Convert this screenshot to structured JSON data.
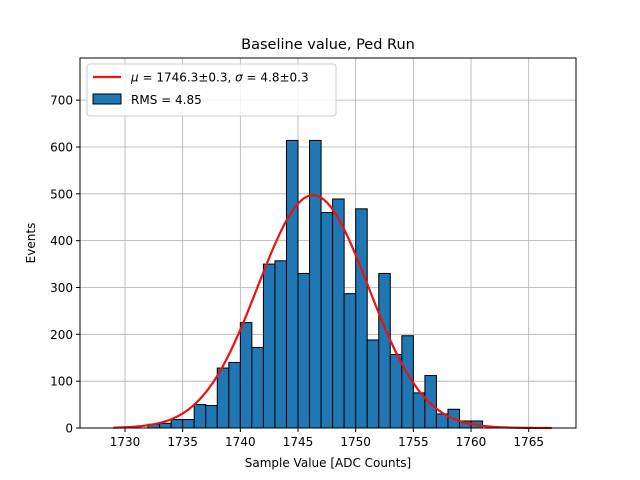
{
  "chart_data": {
    "type": "bar",
    "title": "Baseline value, Ped Run",
    "xlabel": "Sample Value [ADC Counts]",
    "ylabel": "Events",
    "xlim": [
      1726.1,
      1769.1
    ],
    "ylim": [
      0,
      790
    ],
    "xticks": [
      1730,
      1735,
      1740,
      1745,
      1750,
      1755,
      1760,
      1765
    ],
    "yticks": [
      0,
      100,
      200,
      300,
      400,
      500,
      600,
      700
    ],
    "grid": true,
    "legend_position": "top-left",
    "bin_width": 1,
    "histogram": {
      "name": "RMS = 4.85",
      "color": "#1f77b4",
      "bin_starts": [
        1732,
        1733,
        1734,
        1735,
        1736,
        1737,
        1738,
        1739,
        1740,
        1741,
        1742,
        1743,
        1744,
        1745,
        1746,
        1747,
        1748,
        1749,
        1750,
        1751,
        1752,
        1753,
        1754,
        1755,
        1756,
        1757,
        1758,
        1759,
        1760
      ],
      "counts": [
        8,
        10,
        18,
        18,
        50,
        48,
        128,
        140,
        225,
        172,
        350,
        357,
        614,
        330,
        614,
        460,
        489,
        287,
        468,
        188,
        330,
        157,
        197,
        75,
        112,
        30,
        40,
        15,
        15
      ]
    },
    "fit": {
      "label_math": {
        "mu_symbol": "μ",
        "mu_value": " = 1746.3±0.3, ",
        "sigma_symbol": "σ",
        "sigma_value": " = 4.8±0.3"
      },
      "color": "#ee1111",
      "mu": 1746.3,
      "sigma": 4.8,
      "amplitude": 497,
      "x_range": [
        1729,
        1767
      ]
    }
  }
}
